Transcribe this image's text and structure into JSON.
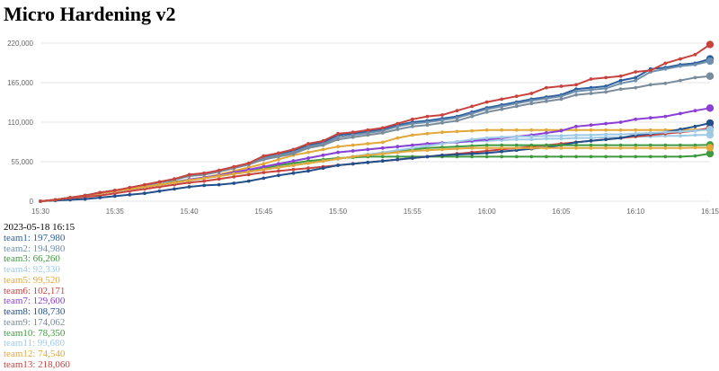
{
  "page": {
    "title": "Micro Hardening v2"
  },
  "legend": {
    "timestamp": "2023-05-18 16:15",
    "entries": [
      {
        "label": "team1: 197,980",
        "color": "#2c5f9e"
      },
      {
        "label": "team2: 194,980",
        "color": "#6f8fae"
      },
      {
        "label": "team3: 66,260",
        "color": "#3f9a3f"
      },
      {
        "label": "team4: 92,330",
        "color": "#9ecae6"
      },
      {
        "label": "team5: 99,520",
        "color": "#e3a83a"
      },
      {
        "label": "team6: 102,171",
        "color": "#c8433e"
      },
      {
        "label": "team7: 129,600",
        "color": "#8a3fd6"
      },
      {
        "label": "team8: 108,730",
        "color": "#23508a"
      },
      {
        "label": "team9: 174,062",
        "color": "#7a8b9a"
      },
      {
        "label": "team10: 78,350",
        "color": "#3f9a3f"
      },
      {
        "label": "team11: 99,680",
        "color": "#9ecae6"
      },
      {
        "label": "team12: 74,540",
        "color": "#e3a83a"
      },
      {
        "label": "team13: 218,060",
        "color": "#c8433e"
      }
    ]
  },
  "chart_data": {
    "type": "line",
    "x": [
      "15:30",
      "15:31",
      "15:32",
      "15:33",
      "15:34",
      "15:35",
      "15:36",
      "15:37",
      "15:38",
      "15:39",
      "15:40",
      "15:41",
      "15:42",
      "15:43",
      "15:44",
      "15:45",
      "15:46",
      "15:47",
      "15:48",
      "15:49",
      "15:50",
      "15:51",
      "15:52",
      "15:53",
      "15:54",
      "15:55",
      "15:56",
      "15:57",
      "15:58",
      "15:59",
      "16:00",
      "16:01",
      "16:02",
      "16:03",
      "16:04",
      "16:05",
      "16:06",
      "16:07",
      "16:08",
      "16:09",
      "16:10",
      "16:11",
      "16:12",
      "16:13",
      "16:14",
      "16:15"
    ],
    "x_ticks": [
      "15:30",
      "15:35",
      "15:40",
      "15:45",
      "15:50",
      "15:55",
      "16:00",
      "16:05",
      "16:10",
      "16:15"
    ],
    "y_ticks": [
      "0",
      "55,000",
      "110,000",
      "165,000",
      "220,000"
    ],
    "ylim": [
      0,
      230000
    ],
    "grid": true,
    "series": [
      {
        "name": "team1",
        "color": "#2c5f9e",
        "values": [
          0,
          2000,
          5000,
          8000,
          12000,
          15000,
          18000,
          22000,
          26000,
          30000,
          36000,
          38000,
          42000,
          47000,
          52000,
          62000,
          66000,
          70000,
          78000,
          82000,
          92000,
          94000,
          97000,
          100000,
          106000,
          110000,
          112000,
          115000,
          118000,
          124000,
          130000,
          134000,
          138000,
          142000,
          145000,
          148000,
          156000,
          158000,
          160000,
          168000,
          172000,
          184000,
          186000,
          190000,
          192000,
          197980
        ]
      },
      {
        "name": "team2",
        "color": "#6f8fae",
        "values": [
          0,
          2000,
          5000,
          8000,
          12000,
          15000,
          18000,
          22000,
          26000,
          30000,
          35000,
          37000,
          41000,
          46000,
          51000,
          60000,
          64000,
          68000,
          76000,
          80000,
          89000,
          92000,
          95000,
          98000,
          104000,
          108000,
          110000,
          113000,
          116000,
          122000,
          128000,
          132000,
          136000,
          140000,
          143000,
          146000,
          153000,
          155000,
          157000,
          164000,
          168000,
          180000,
          184000,
          188000,
          190000,
          194980
        ]
      },
      {
        "name": "team3",
        "color": "#3f9a3f",
        "values": [
          0,
          2000,
          5000,
          8000,
          11000,
          14000,
          17000,
          20000,
          23000,
          27000,
          30000,
          33000,
          36000,
          40000,
          43000,
          46000,
          50000,
          53000,
          56000,
          58000,
          60000,
          61000,
          62000,
          62000,
          62000,
          62000,
          62000,
          62000,
          62000,
          62000,
          62000,
          62000,
          62000,
          62000,
          62000,
          62000,
          62000,
          62000,
          62000,
          62000,
          62000,
          62000,
          62000,
          62000,
          63000,
          66260
        ]
      },
      {
        "name": "team4",
        "color": "#9ecae6",
        "values": [
          0,
          2000,
          5000,
          8000,
          11000,
          14000,
          17000,
          20000,
          23000,
          26000,
          30000,
          33000,
          36000,
          40000,
          44000,
          48000,
          52000,
          56000,
          60000,
          64000,
          68000,
          70000,
          72000,
          74000,
          76000,
          78000,
          80000,
          81000,
          82000,
          83000,
          84000,
          85000,
          86000,
          86000,
          87000,
          87000,
          88000,
          88000,
          89000,
          89000,
          90000,
          90000,
          91000,
          91000,
          92000,
          92330
        ]
      },
      {
        "name": "team5",
        "color": "#e3a83a",
        "values": [
          0,
          2000,
          5000,
          8000,
          11000,
          14000,
          17000,
          20000,
          23000,
          26000,
          30000,
          33000,
          37000,
          42000,
          47000,
          52000,
          58000,
          64000,
          68000,
          72000,
          76000,
          78000,
          80000,
          82000,
          88000,
          92000,
          94000,
          96000,
          97000,
          98000,
          99000,
          99000,
          99000,
          99000,
          99000,
          99000,
          99000,
          99000,
          99000,
          99000,
          99000,
          99000,
          99000,
          99000,
          99500,
          99520
        ]
      },
      {
        "name": "team6",
        "color": "#c8433e",
        "values": [
          0,
          2000,
          4000,
          6000,
          8000,
          11000,
          14000,
          17000,
          20000,
          23000,
          26000,
          28000,
          31000,
          34000,
          37000,
          40000,
          42000,
          44000,
          46000,
          48000,
          50000,
          52000,
          54000,
          56000,
          58000,
          60000,
          62000,
          64000,
          66000,
          68000,
          70000,
          72000,
          74000,
          76000,
          78000,
          80000,
          82000,
          84000,
          86000,
          88000,
          90000,
          92000,
          94000,
          96000,
          98000,
          102171
        ]
      },
      {
        "name": "team7",
        "color": "#8a3fd6",
        "values": [
          0,
          2000,
          5000,
          8000,
          11000,
          14000,
          17000,
          20000,
          23000,
          26000,
          30000,
          33000,
          36000,
          40000,
          44000,
          48000,
          52000,
          56000,
          60000,
          64000,
          68000,
          70000,
          72000,
          74000,
          76000,
          78000,
          80000,
          81000,
          82000,
          84000,
          86000,
          88000,
          90000,
          92000,
          95000,
          98000,
          104000,
          106000,
          108000,
          110000,
          114000,
          116000,
          118000,
          122000,
          126000,
          129600
        ]
      },
      {
        "name": "team8",
        "color": "#23508a",
        "values": [
          0,
          1000,
          2000,
          3000,
          5000,
          7000,
          9000,
          11000,
          14000,
          17000,
          20000,
          22000,
          23000,
          25000,
          28000,
          32000,
          36000,
          39000,
          42000,
          46000,
          50000,
          52000,
          54000,
          56000,
          58000,
          60000,
          62000,
          64000,
          65000,
          66000,
          67000,
          69000,
          71000,
          73000,
          75000,
          78000,
          82000,
          84000,
          86000,
          88000,
          92000,
          94000,
          96000,
          100000,
          104000,
          108730
        ]
      },
      {
        "name": "team9",
        "color": "#7a8b9a",
        "values": [
          0,
          2000,
          5000,
          8000,
          12000,
          15000,
          18000,
          22000,
          26000,
          30000,
          35000,
          37000,
          41000,
          46000,
          51000,
          58000,
          62000,
          66000,
          74000,
          78000,
          86000,
          89000,
          92000,
          95000,
          100000,
          104000,
          106000,
          109000,
          112000,
          118000,
          124000,
          128000,
          132000,
          136000,
          139000,
          142000,
          148000,
          150000,
          152000,
          156000,
          158000,
          162000,
          164000,
          168000,
          172000,
          174062
        ]
      },
      {
        "name": "team10",
        "color": "#3f9a3f",
        "values": [
          0,
          2000,
          5000,
          8000,
          11000,
          14000,
          17000,
          20000,
          23000,
          26000,
          29000,
          32000,
          35000,
          38000,
          41000,
          44000,
          47000,
          50000,
          53000,
          56000,
          59000,
          62000,
          65000,
          67000,
          70000,
          72000,
          74000,
          75000,
          76000,
          77000,
          78000,
          78000,
          78000,
          78000,
          78000,
          78000,
          78000,
          78000,
          78000,
          78000,
          78000,
          78000,
          78000,
          78000,
          78000,
          78350
        ]
      },
      {
        "name": "team11",
        "color": "#9ecae6",
        "values": [
          0,
          2000,
          5000,
          8000,
          11000,
          14000,
          17000,
          20000,
          23000,
          26000,
          29000,
          32000,
          35000,
          38000,
          41000,
          44000,
          47000,
          50000,
          53000,
          56000,
          59000,
          62000,
          65000,
          68000,
          71000,
          74000,
          77000,
          80000,
          83000,
          86000,
          88000,
          89000,
          90000,
          90000,
          91000,
          91000,
          92000,
          92000,
          93000,
          93000,
          94000,
          95000,
          96000,
          97000,
          98000,
          99680
        ]
      },
      {
        "name": "team12",
        "color": "#e3a83a",
        "values": [
          0,
          2000,
          5000,
          8000,
          11000,
          14000,
          17000,
          20000,
          23000,
          26000,
          29000,
          32000,
          35000,
          38000,
          41000,
          44000,
          47000,
          50000,
          53000,
          56000,
          59000,
          62000,
          64000,
          66000,
          68000,
          70000,
          71000,
          72000,
          73000,
          74000,
          74000,
          74000,
          74000,
          74000,
          74000,
          74000,
          74000,
          74000,
          74000,
          74000,
          74000,
          74000,
          74000,
          74000,
          74500,
          74540
        ]
      },
      {
        "name": "team13",
        "color": "#c8433e",
        "values": [
          0,
          2000,
          5000,
          8000,
          12000,
          15000,
          19000,
          23000,
          27000,
          31000,
          37000,
          39000,
          43000,
          48000,
          53000,
          63000,
          67000,
          72000,
          80000,
          84000,
          94000,
          96000,
          99000,
          102000,
          108000,
          114000,
          118000,
          120000,
          126000,
          132000,
          138000,
          142000,
          146000,
          150000,
          158000,
          160000,
          162000,
          170000,
          172000,
          174000,
          180000,
          182000,
          192000,
          198000,
          204000,
          218060
        ]
      }
    ]
  }
}
